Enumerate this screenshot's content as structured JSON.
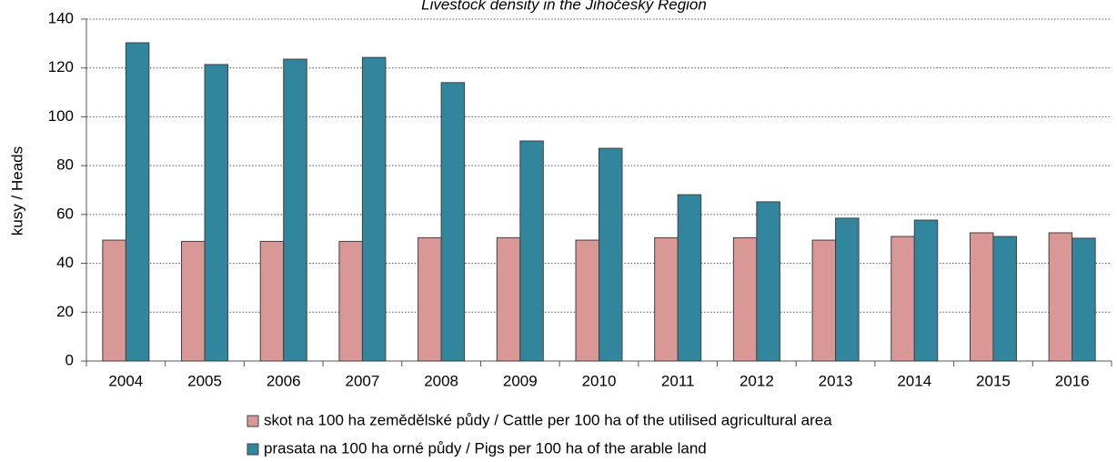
{
  "chart_data": {
    "type": "bar",
    "title": "Livestock density in the Jihočeský Region",
    "y_label": "kusy / Heads",
    "categories": [
      "2004",
      "2005",
      "2006",
      "2007",
      "2008",
      "2009",
      "2010",
      "2011",
      "2012",
      "2013",
      "2014",
      "2015",
      "2016"
    ],
    "series": [
      {
        "name": "skot na 100 ha zemědělské půdy / Cattle per 100 ha of the utilised agricultural area",
        "color": "#d99795",
        "values": [
          49.5,
          49,
          49,
          49,
          50.5,
          50.5,
          49.5,
          50.5,
          50.5,
          49.5,
          51,
          52.5,
          52.5
        ]
      },
      {
        "name": "prasata na 100 ha orné půdy / Pigs per 100 ha of the arable land",
        "color": "#31859c",
        "values": [
          130.3,
          121.4,
          123.6,
          124.3,
          114,
          90.1,
          87.1,
          68.1,
          65.2,
          58.5,
          57.7,
          51,
          50.3
        ]
      }
    ],
    "ylim": [
      0,
      140
    ],
    "yticks": [
      0,
      20,
      40,
      60,
      80,
      100,
      120,
      140
    ],
    "grid": true
  }
}
